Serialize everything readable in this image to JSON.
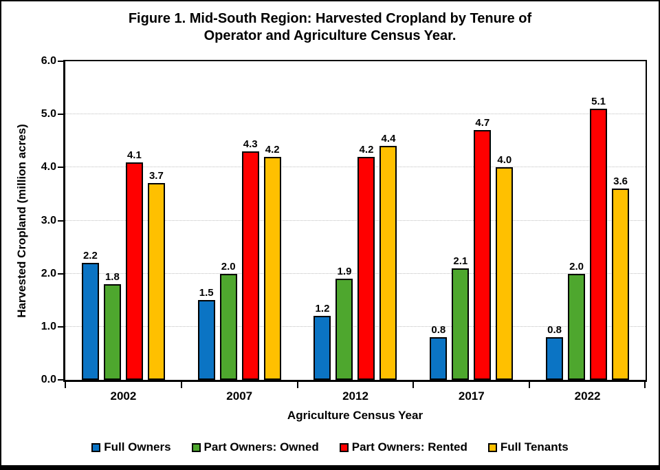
{
  "figure": {
    "title_lines": [
      "Figure 1. Mid-South Region: Harvested Cropland by Tenure of",
      "Operator and Agriculture Census Year."
    ]
  },
  "chart_data": {
    "type": "bar",
    "title": "Figure 1. Mid-South Region: Harvested Cropland by Tenure of Operator and Agriculture Census Year.",
    "categories": [
      "2002",
      "2007",
      "2012",
      "2017",
      "2022"
    ],
    "series": [
      {
        "name": "Full Owners",
        "color": "#0B74C4",
        "values": [
          2.2,
          1.5,
          1.2,
          0.8,
          0.8
        ]
      },
      {
        "name": "Part Owners: Owned",
        "color": "#4EA72E",
        "values": [
          1.8,
          2.0,
          1.9,
          2.1,
          2.0
        ]
      },
      {
        "name": "Part Owners: Rented",
        "color": "#FF0000",
        "values": [
          4.1,
          4.3,
          4.2,
          4.7,
          5.1
        ]
      },
      {
        "name": "Full Tenants",
        "color": "#FFC000",
        "values": [
          3.7,
          4.2,
          4.4,
          4.0,
          3.6
        ]
      }
    ],
    "xlabel": "Agriculture Census Year",
    "ylabel": "Harvested Cropland (million acres)",
    "ylim": [
      0.0,
      6.0
    ],
    "ytick_step": 1.0,
    "ytick_labels": [
      "0.0",
      "1.0",
      "2.0",
      "3.0",
      "4.0",
      "5.0",
      "6.0"
    ],
    "grid": true,
    "gridline_color": "#BFBFBF",
    "legend_position": "bottom",
    "data_labels_shown": true
  }
}
